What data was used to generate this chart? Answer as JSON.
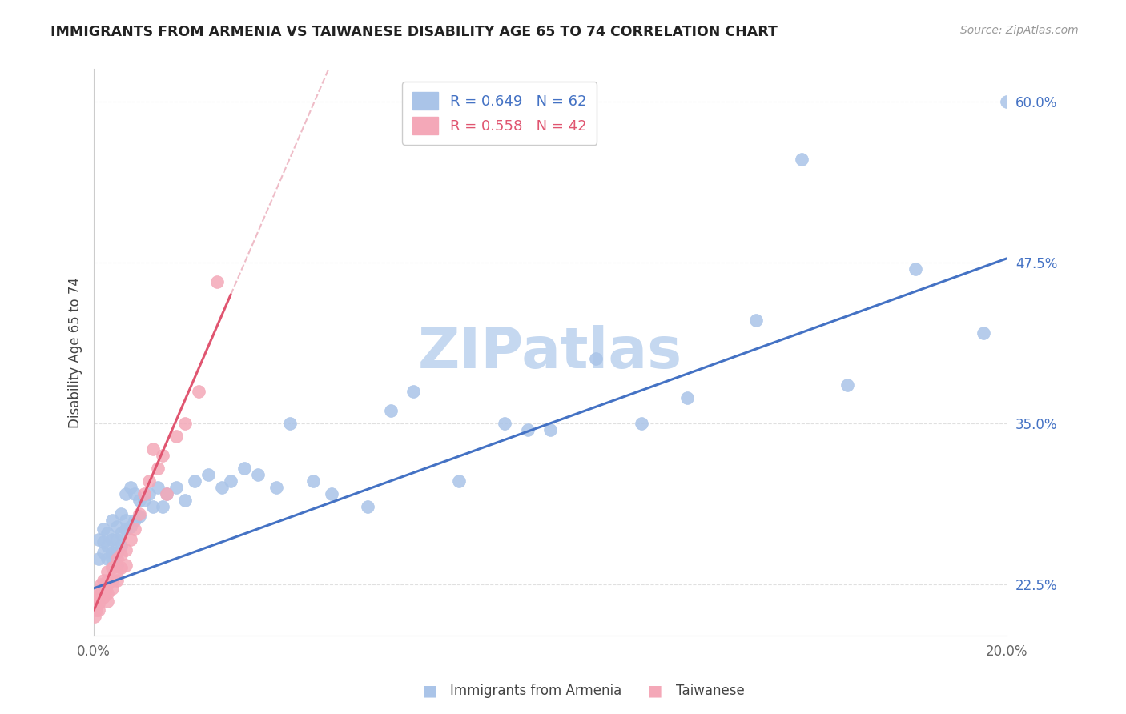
{
  "title": "IMMIGRANTS FROM ARMENIA VS TAIWANESE DISABILITY AGE 65 TO 74 CORRELATION CHART",
  "source": "Source: ZipAtlas.com",
  "ylabel": "Disability Age 65 to 74",
  "xlim": [
    0.0,
    0.2
  ],
  "ylim": [
    0.185,
    0.625
  ],
  "xticks": [
    0.0,
    0.05,
    0.1,
    0.15,
    0.2
  ],
  "xtick_labels": [
    "0.0%",
    "",
    "",
    "",
    "20.0%"
  ],
  "yticks_right": [
    0.225,
    0.35,
    0.475,
    0.6
  ],
  "ytick_labels_right": [
    "22.5%",
    "35.0%",
    "47.5%",
    "60.0%"
  ],
  "grid_color": "#dddddd",
  "background_color": "#ffffff",
  "legend_r1": "R = 0.649",
  "legend_n1": "N = 62",
  "legend_r2": "R = 0.558",
  "legend_n2": "N = 42",
  "blue_color": "#aac4e8",
  "pink_color": "#f4a8b8",
  "trend_blue_color": "#4472c4",
  "trend_pink_color": "#e05570",
  "trend_pink_dash_color": "#e8a0b0",
  "blue_r_color": "#4472c4",
  "pink_r_color": "#e05570",
  "watermark": "ZIPatlas",
  "watermark_color": "#c5d8f0",
  "blue_scatter_x": [
    0.001,
    0.001,
    0.002,
    0.002,
    0.002,
    0.003,
    0.003,
    0.003,
    0.004,
    0.004,
    0.004,
    0.004,
    0.005,
    0.005,
    0.005,
    0.005,
    0.006,
    0.006,
    0.006,
    0.007,
    0.007,
    0.007,
    0.008,
    0.008,
    0.009,
    0.009,
    0.01,
    0.01,
    0.011,
    0.012,
    0.013,
    0.014,
    0.015,
    0.016,
    0.018,
    0.02,
    0.022,
    0.025,
    0.028,
    0.03,
    0.033,
    0.036,
    0.04,
    0.043,
    0.048,
    0.052,
    0.06,
    0.065,
    0.07,
    0.08,
    0.09,
    0.095,
    0.1,
    0.11,
    0.12,
    0.13,
    0.145,
    0.155,
    0.165,
    0.18,
    0.195,
    0.2
  ],
  "blue_scatter_y": [
    0.245,
    0.26,
    0.25,
    0.268,
    0.258,
    0.245,
    0.265,
    0.255,
    0.25,
    0.26,
    0.275,
    0.245,
    0.26,
    0.25,
    0.24,
    0.27,
    0.265,
    0.28,
    0.255,
    0.275,
    0.295,
    0.268,
    0.3,
    0.27,
    0.295,
    0.275,
    0.29,
    0.278,
    0.29,
    0.295,
    0.285,
    0.3,
    0.285,
    0.295,
    0.3,
    0.29,
    0.305,
    0.31,
    0.3,
    0.305,
    0.315,
    0.31,
    0.3,
    0.35,
    0.305,
    0.295,
    0.285,
    0.36,
    0.375,
    0.305,
    0.35,
    0.345,
    0.345,
    0.4,
    0.35,
    0.37,
    0.43,
    0.555,
    0.38,
    0.47,
    0.42,
    0.6
  ],
  "pink_scatter_x": [
    0.0002,
    0.0003,
    0.0005,
    0.0007,
    0.001,
    0.001,
    0.001,
    0.001,
    0.0015,
    0.0015,
    0.002,
    0.002,
    0.002,
    0.0025,
    0.003,
    0.003,
    0.003,
    0.003,
    0.003,
    0.004,
    0.004,
    0.004,
    0.005,
    0.005,
    0.005,
    0.006,
    0.006,
    0.007,
    0.007,
    0.008,
    0.009,
    0.01,
    0.011,
    0.012,
    0.013,
    0.014,
    0.015,
    0.016,
    0.018,
    0.02,
    0.023,
    0.027
  ],
  "pink_scatter_y": [
    0.2,
    0.21,
    0.205,
    0.215,
    0.215,
    0.22,
    0.21,
    0.205,
    0.225,
    0.218,
    0.222,
    0.215,
    0.228,
    0.22,
    0.225,
    0.235,
    0.218,
    0.228,
    0.212,
    0.228,
    0.238,
    0.222,
    0.235,
    0.228,
    0.245,
    0.238,
    0.248,
    0.252,
    0.24,
    0.26,
    0.268,
    0.28,
    0.295,
    0.305,
    0.33,
    0.315,
    0.325,
    0.295,
    0.34,
    0.35,
    0.375,
    0.46
  ],
  "blue_trend_x0": 0.0,
  "blue_trend_y0": 0.222,
  "blue_trend_x1": 0.2,
  "blue_trend_y1": 0.478,
  "pink_trend_x0": 0.0,
  "pink_trend_y0": 0.205,
  "pink_trend_x1": 0.03,
  "pink_trend_y1": 0.45
}
